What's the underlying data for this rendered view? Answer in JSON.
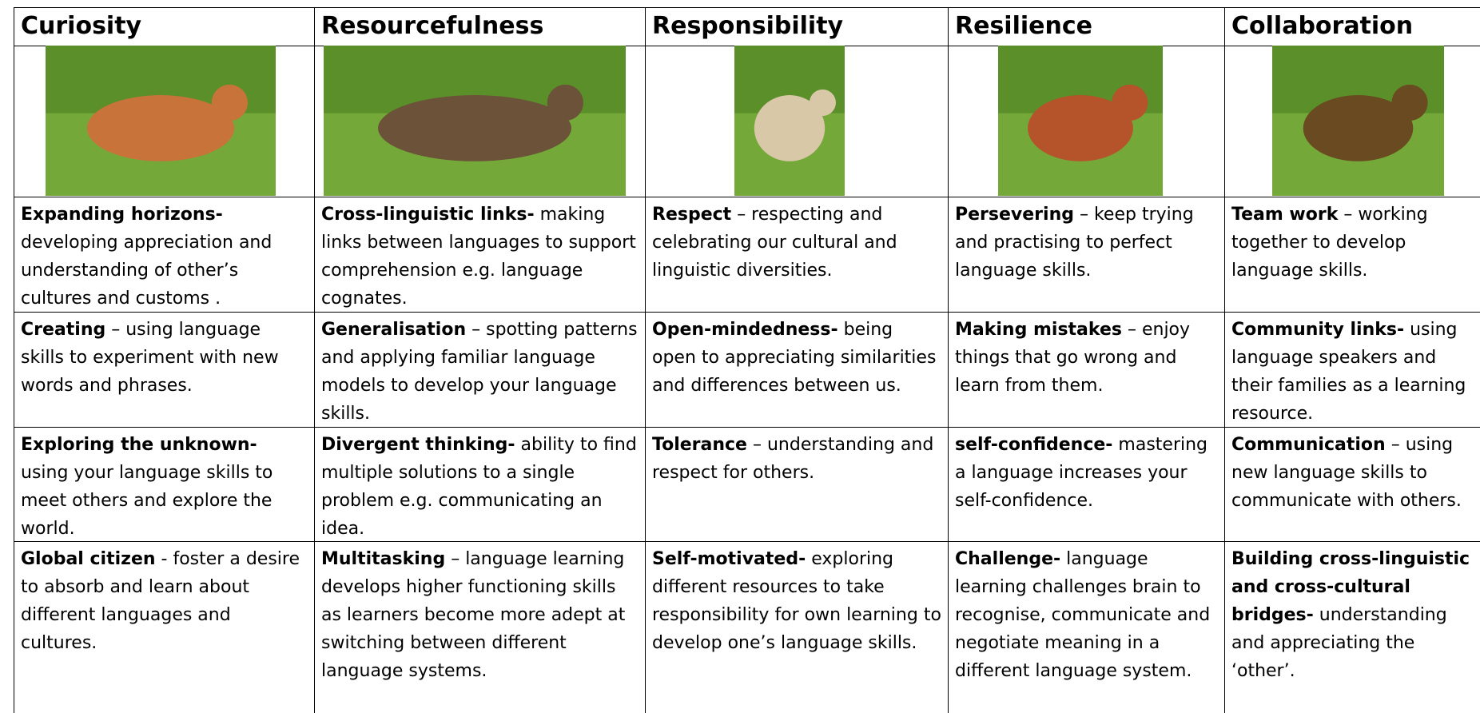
{
  "header": [
    "Curiosity",
    "Resourcefulness",
    "Responsibility",
    "Resilience",
    "Collaboration"
  ],
  "rows": [
    [
      {
        "bold": "Expanding horizons-",
        "text": "developing appreciation and understanding of other’s cultures and customs ."
      },
      {
        "bold": "Cross-linguistic links-",
        "text": "making links between languages to support comprehension e.g. language cognates."
      },
      {
        "bold": "Respect",
        "text": "– respecting and celebrating our cultural and linguistic diversities."
      },
      {
        "bold": "Persevering",
        "text": "– keep trying and practising to perfect language skills."
      },
      {
        "bold": "Team work",
        "text": "– working together to develop language skills."
      }
    ],
    [
      {
        "bold": "Creating",
        "text": "– using language skills to experiment with new words and phrases."
      },
      {
        "bold": "Generalisation",
        "text": "– spotting patterns and applying familiar language models to develop your language skills."
      },
      {
        "bold": "Open-mindedness-",
        "text": "being open to appreciating similarities and differences between us."
      },
      {
        "bold": "Making mistakes",
        "text": "– enjoy things that go wrong and learn from them."
      },
      {
        "bold": "Community links-",
        "text": "using language speakers and their families as a learning resource."
      }
    ],
    [
      {
        "bold": "Exploring the unknown-",
        "text": "using your language skills to meet others and explore the world."
      },
      {
        "bold": "Divergent thinking-",
        "text": "ability to find multiple solutions to a single problem e.g. communicating an idea."
      },
      {
        "bold": "Tolerance",
        "text": "– understanding and respect for others."
      },
      {
        "bold": "self-confidence-",
        "text": "mastering a language increases your self-confidence."
      },
      {
        "bold": "Communication",
        "text": "– using new language skills to communicate with others."
      }
    ],
    [
      {
        "bold": "Global citizen",
        "text": "- foster a desire to absorb and learn about different languages and cultures."
      },
      {
        "bold": "Multitasking",
        "text": "– language learning develops higher functioning skills as learners become more adept at switching between different language systems."
      },
      {
        "bold": "Self-motivated-",
        "text": "exploring different resources to take responsibility for own learning to develop one’s language skills."
      },
      {
        "bold": "Challenge-",
        "text": "language learning challenges brain to recognise, communicate and negotiate meaning in a different language system."
      },
      {
        "bold": "Building cross-linguistic and cross-cultural bridges-",
        "text": "understanding and appreciating the ‘other’."
      }
    ]
  ]
}
